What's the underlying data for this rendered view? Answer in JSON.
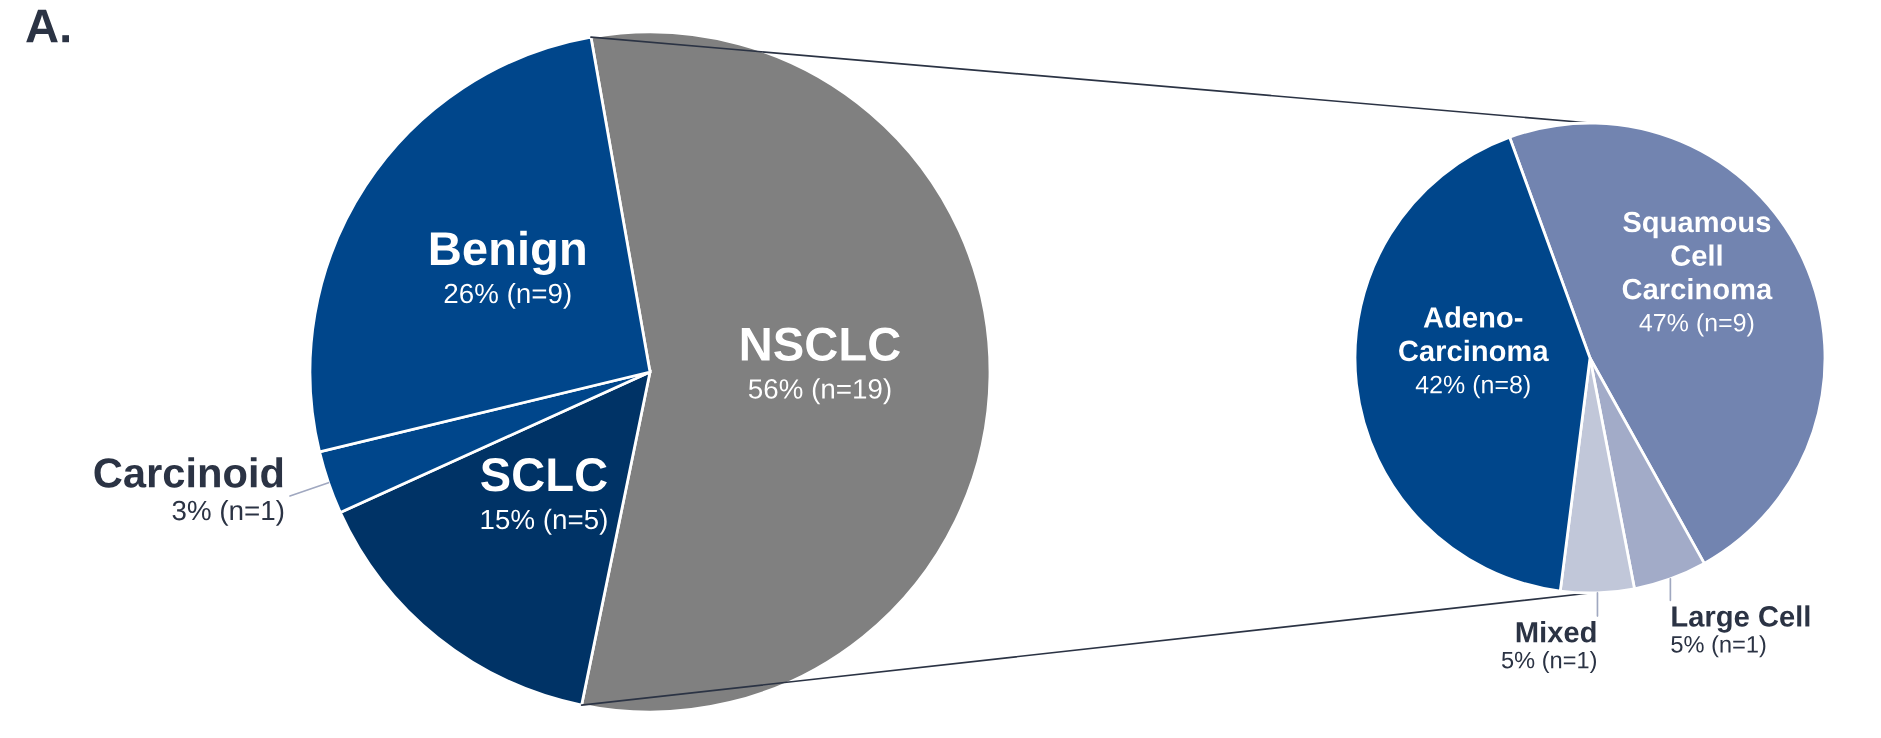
{
  "chart_data": [
    {
      "type": "pie",
      "title": "A.",
      "categories": [
        "NSCLC",
        "SCLC",
        "Carcinoid",
        "Benign"
      ],
      "values": [
        56,
        15,
        3,
        26
      ],
      "colors": [
        "#808080",
        "#003366",
        "#00468b",
        "#00468b"
      ],
      "value_labels": [
        "56% (n=19)",
        "15% (n=5)",
        "3% (n=1)",
        "26% (n=9)"
      ]
    },
    {
      "type": "pie",
      "categories": [
        "Squamous\nCell\nCarcinoma",
        "Large Cell",
        "Mixed",
        "Adeno-\nCarcinoma"
      ],
      "values": [
        47,
        5,
        5,
        42
      ],
      "colors": [
        "#7284b0",
        "#a2abc8",
        "#c1c7d9",
        "#00468b"
      ],
      "value_labels": [
        "47% (n=9)",
        "5% (n=1)",
        "5% (n=1)",
        "42% (n=8)"
      ]
    }
  ]
}
